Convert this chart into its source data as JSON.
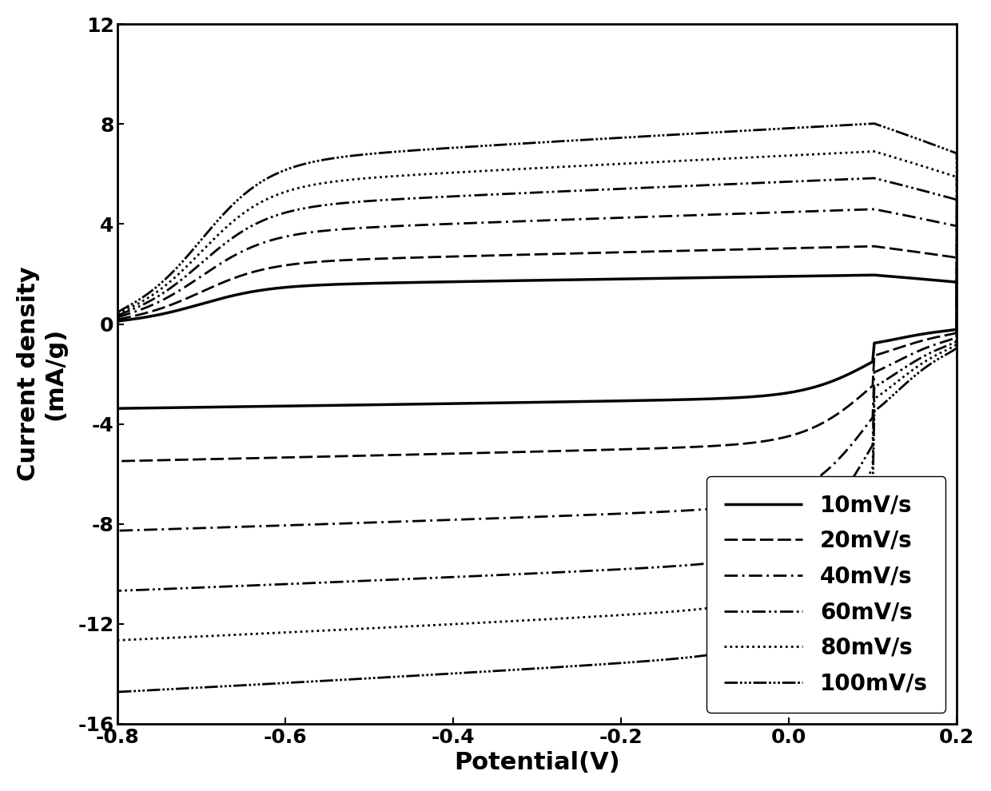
{
  "title": "",
  "xlabel": "Potential(V)",
  "ylabel": "Current density\n(mA/g)",
  "xlim": [
    -0.8,
    0.2
  ],
  "ylim": [
    -16,
    12
  ],
  "xticks": [
    -0.8,
    -0.6,
    -0.4,
    -0.2,
    0.0,
    0.2
  ],
  "yticks": [
    -16,
    -12,
    -8,
    -4,
    0,
    4,
    8,
    12
  ],
  "scan_rates": [
    10,
    20,
    40,
    60,
    80,
    100
  ],
  "color": "#000000",
  "legend_labels": [
    "10mV/s",
    "20mV/s",
    "40mV/s",
    "60mV/s",
    "80mV/s",
    "100mV/s"
  ],
  "legend_loc": "lower right",
  "background_color": "#ffffff",
  "label_fontsize": 22,
  "tick_fontsize": 18,
  "legend_fontsize": 20,
  "amplitudes": [
    5.0,
    7.5,
    10.5,
    13.0,
    15.0,
    17.0
  ],
  "upper_scale": [
    0.28,
    0.3,
    0.32,
    0.33,
    0.34,
    0.35
  ],
  "lower_scale": [
    0.55,
    0.6,
    0.65,
    0.68,
    0.7,
    0.72
  ]
}
